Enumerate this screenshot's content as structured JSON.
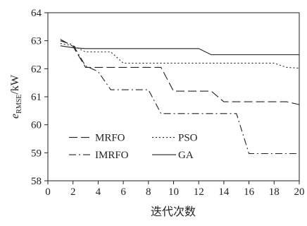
{
  "chart_data": {
    "type": "line",
    "xlabel": "迭代次数",
    "ylabel": {
      "var": "e",
      "sub": "RMSE",
      "unit": "/kW"
    },
    "xlim": [
      0,
      20
    ],
    "ylim": [
      58,
      64
    ],
    "xticks": [
      "0",
      "2",
      "4",
      "6",
      "8",
      "10",
      "12",
      "14",
      "16",
      "18",
      "20"
    ],
    "yticks": [
      "58",
      "59",
      "60",
      "61",
      "62",
      "63",
      "64"
    ],
    "grid": false,
    "legend_position": "bottom-left",
    "series": [
      {
        "name": "MRFO",
        "style": "dashed",
        "x": [
          1,
          2,
          3,
          4,
          5,
          6,
          7,
          8,
          9,
          10,
          11,
          12,
          13,
          14,
          15,
          16,
          17,
          18,
          19,
          20
        ],
        "y": [
          63.05,
          62.8,
          62.05,
          62.05,
          62.05,
          62.05,
          62.05,
          62.05,
          62.05,
          61.2,
          61.2,
          61.2,
          61.2,
          60.82,
          60.82,
          60.82,
          60.82,
          60.82,
          60.82,
          60.72
        ]
      },
      {
        "name": "PSO",
        "style": "dotted",
        "x": [
          1,
          2,
          3,
          4,
          5,
          6,
          7,
          8,
          9,
          10,
          11,
          12,
          13,
          14,
          15,
          16,
          17,
          18,
          19,
          20
        ],
        "y": [
          62.9,
          62.82,
          62.6,
          62.6,
          62.6,
          62.2,
          62.2,
          62.2,
          62.2,
          62.2,
          62.2,
          62.2,
          62.2,
          62.2,
          62.2,
          62.2,
          62.2,
          62.2,
          62.05,
          62.02
        ]
      },
      {
        "name": "IMRFO",
        "style": "dashdot",
        "x": [
          1,
          2,
          3,
          4,
          5,
          6,
          7,
          8,
          9,
          10,
          11,
          12,
          13,
          14,
          15,
          16,
          17,
          18,
          19,
          20
        ],
        "y": [
          63.0,
          62.85,
          62.1,
          61.9,
          61.25,
          61.25,
          61.25,
          61.25,
          60.4,
          60.4,
          60.4,
          60.4,
          60.4,
          60.4,
          60.4,
          58.97,
          58.97,
          58.97,
          58.97,
          58.97
        ]
      },
      {
        "name": "GA",
        "style": "solid",
        "x": [
          1,
          2,
          3,
          4,
          5,
          6,
          7,
          8,
          9,
          10,
          11,
          12,
          13,
          14,
          15,
          16,
          17,
          18,
          19,
          20
        ],
        "y": [
          62.82,
          62.75,
          62.72,
          62.72,
          62.72,
          62.72,
          62.72,
          62.72,
          62.72,
          62.72,
          62.72,
          62.72,
          62.5,
          62.5,
          62.5,
          62.5,
          62.5,
          62.5,
          62.5,
          62.5
        ]
      }
    ]
  }
}
